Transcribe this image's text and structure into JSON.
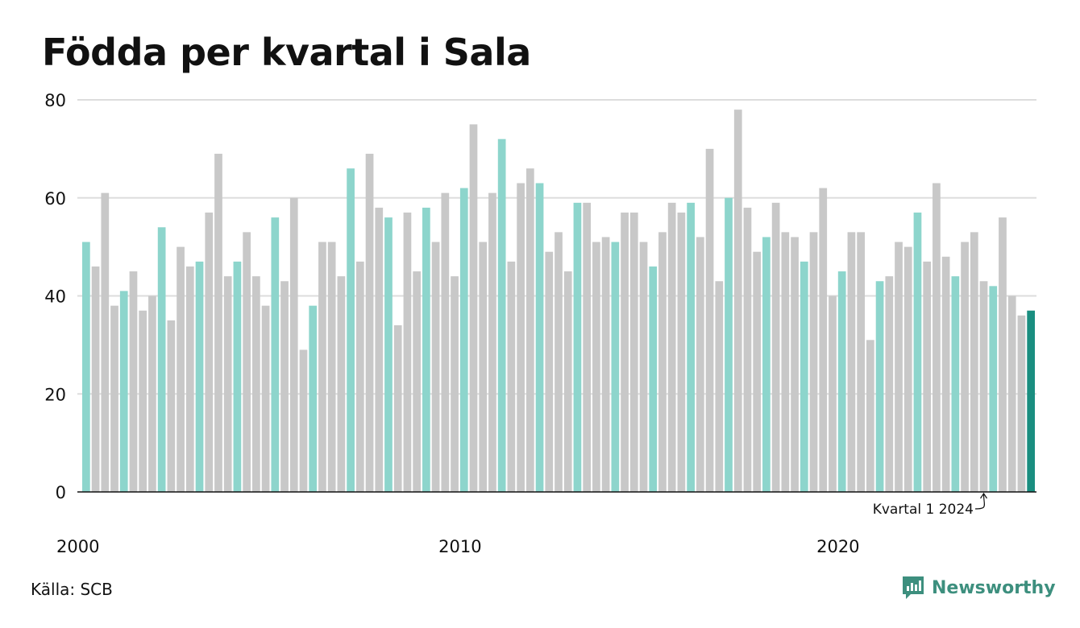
{
  "title": "Födda per kvartal i Sala",
  "source": "Källa: SCB",
  "brand": {
    "name": "Newsworthy",
    "icon": "newsworthy-logo-icon"
  },
  "annotation": {
    "text": "Kvartal 1 2024",
    "target_index": 96
  },
  "colors": {
    "highlight_q1": "#8dd5cc",
    "other_quarters": "#c8c8c8",
    "latest": "#1a8e80",
    "grid": "#dddddd",
    "brand": "#3d8f7e"
  },
  "chart_data": {
    "type": "bar",
    "title": "Födda per kvartal i Sala",
    "start": {
      "year": 2000,
      "quarter": 1
    },
    "ylim": [
      0,
      80
    ],
    "y_ticks": [
      "0",
      "20",
      "40",
      "60",
      "80"
    ],
    "x_tick_labels": [
      "2000",
      "2010",
      "2020"
    ],
    "grid": true,
    "values": [
      51,
      46,
      61,
      38,
      41,
      45,
      37,
      40,
      54,
      35,
      50,
      46,
      47,
      57,
      69,
      44,
      47,
      53,
      44,
      38,
      56,
      43,
      60,
      29,
      38,
      51,
      51,
      44,
      66,
      47,
      69,
      58,
      56,
      34,
      57,
      45,
      58,
      51,
      61,
      44,
      62,
      75,
      51,
      61,
      72,
      47,
      63,
      66,
      63,
      49,
      53,
      45,
      59,
      59,
      51,
      52,
      51,
      57,
      57,
      51,
      46,
      53,
      59,
      57,
      59,
      52,
      70,
      43,
      60,
      78,
      58,
      49,
      52,
      59,
      53,
      52,
      47,
      53,
      62,
      40,
      45,
      53,
      53,
      31,
      43,
      44,
      51,
      50,
      57,
      47,
      63,
      48,
      44,
      51,
      53,
      43,
      42,
      56,
      40,
      36,
      37
    ]
  }
}
